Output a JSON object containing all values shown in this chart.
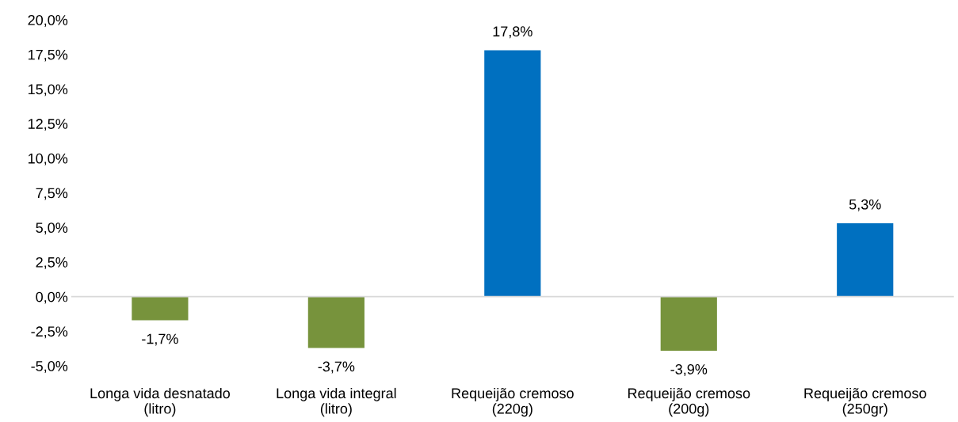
{
  "chart_data": {
    "type": "bar",
    "categories": [
      "Longa vida desnatado\n(litro)",
      "Longa vida integral\n(litro)",
      "Requeijão cremoso\n(220g)",
      "Requeijão cremoso\n(200g)",
      "Requeijão cremoso\n(250gr)"
    ],
    "values": [
      -1.7,
      -3.7,
      17.8,
      -3.9,
      5.3
    ],
    "colors": [
      "#77933c",
      "#77933c",
      "#0070c0",
      "#77933c",
      "#0070c0"
    ],
    "value_labels": [
      "-1,7%",
      "-3,7%",
      "17,8%",
      "-3,9%",
      "5,3%"
    ],
    "ylim": [
      -5,
      20
    ],
    "yticks": [
      {
        "value": -5,
        "label": "-5,0%"
      },
      {
        "value": -2.5,
        "label": "-2,5%"
      },
      {
        "value": 0,
        "label": "0,0%"
      },
      {
        "value": 2.5,
        "label": "2,5%"
      },
      {
        "value": 5,
        "label": "5,0%"
      },
      {
        "value": 7.5,
        "label": "7,5%"
      },
      {
        "value": 10,
        "label": "10,0%"
      },
      {
        "value": 12.5,
        "label": "12,5%"
      },
      {
        "value": 15,
        "label": "15,0%"
      },
      {
        "value": 17.5,
        "label": "17,5%"
      },
      {
        "value": 20,
        "label": "20,0%"
      }
    ]
  }
}
